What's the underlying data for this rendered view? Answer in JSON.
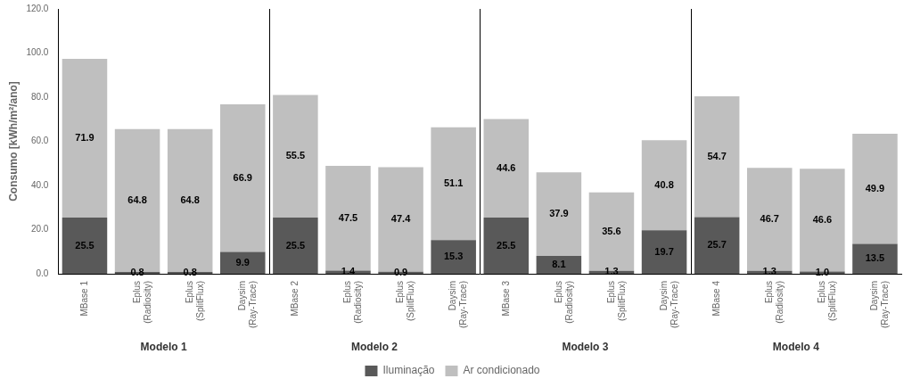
{
  "chart_data": {
    "type": "bar",
    "stacked": true,
    "ylabel": "Consumo [kWh/m²/ano]",
    "group_labels": [
      "Modelo 1",
      "Modelo 2",
      "Modelo 3",
      "Modelo 4"
    ],
    "categories": [
      "MBase 1",
      "Eplus\n(Radiosity)",
      "Eplus\n(SplitFlux)",
      "Daysim\n(Ray-Trace)",
      "MBase 2",
      "Eplus\n(Radiosity)",
      "Eplus\n(SplitFlux)",
      "Daysim\n(Ray-Trace)",
      "MBase 3",
      "Eplus\n(Radiosity)",
      "Eplus\n(SplitFlux)",
      "Daysim\n(Ray-Trace)",
      "MBase 4",
      "Eplus\n(Radiosity)",
      "Eplus\n(SplitFlux)",
      "Daysim\n(Ray-Trace)"
    ],
    "series": [
      {
        "name": "Iluminação",
        "color": "#595959",
        "values": [
          25.5,
          0.8,
          0.8,
          9.9,
          25.5,
          1.4,
          0.9,
          15.3,
          25.5,
          8.1,
          1.3,
          19.7,
          25.7,
          1.3,
          1.0,
          13.5
        ],
        "value_labels": [
          "25.5",
          "0.8",
          "0.8",
          "9.9",
          "25.5",
          "1.4",
          "0.9",
          "15.3",
          "25.5",
          "8.1",
          "1.3",
          "19.7",
          "25.7",
          "1.3",
          "1.0",
          "13.5"
        ]
      },
      {
        "name": "Ar condicionado",
        "color": "#bfbfbf",
        "values": [
          71.9,
          64.8,
          64.8,
          66.9,
          55.5,
          47.5,
          47.4,
          51.1,
          44.6,
          37.9,
          35.6,
          40.8,
          54.7,
          46.7,
          46.6,
          49.9
        ],
        "value_labels": [
          "71.9",
          "64.8",
          "64.8",
          "66.9",
          "55.5",
          "47.5",
          "47.4",
          "51.1",
          "44.6",
          "37.9",
          "35.6",
          "40.8",
          "54.7",
          "46.7",
          "46.6",
          "49.9"
        ]
      }
    ],
    "ylim": [
      0,
      120
    ],
    "yticks": [
      {
        "value": 0,
        "label": "0.0"
      },
      {
        "value": 20,
        "label": "20.0"
      },
      {
        "value": 40,
        "label": "40.0"
      },
      {
        "value": 60,
        "label": "60.0"
      },
      {
        "value": 80,
        "label": "80.0"
      },
      {
        "value": 100,
        "label": "100.0"
      },
      {
        "value": 120,
        "label": "120.0"
      }
    ],
    "grid": false,
    "legend": "bottom",
    "data_labels": true
  }
}
